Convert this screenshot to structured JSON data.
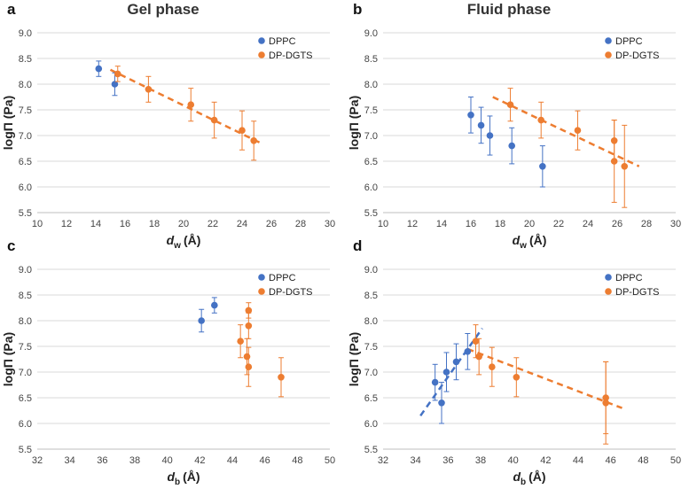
{
  "chart_data": [
    {
      "id": "a",
      "panel_label": "a",
      "title": "Gel phase",
      "type": "scatter",
      "xlabel_main": "d",
      "xlabel_sub": "w",
      "xlabel_unit": "(Å)",
      "ylabel": "logΠ (Pa)",
      "xlim": [
        10,
        30
      ],
      "xticks": [
        10,
        12,
        14,
        16,
        18,
        20,
        22,
        24,
        26,
        28,
        30
      ],
      "ylim": [
        5.5,
        9.0
      ],
      "yticks": [
        "5.5",
        "6.0",
        "6.5",
        "7.0",
        "7.5",
        "8.0",
        "8.5",
        "9.0"
      ],
      "legend": [
        "DPPC",
        "DP-DGTS"
      ],
      "series": [
        {
          "name": "DPPC",
          "color": "#4472c4",
          "points": [
            {
              "x": 14.2,
              "y": 8.3,
              "err": 0.15
            },
            {
              "x": 15.3,
              "y": 8.0,
              "err": 0.22
            }
          ]
        },
        {
          "name": "DP-DGTS",
          "color": "#ed7d31",
          "points": [
            {
              "x": 15.5,
              "y": 8.2,
              "err": 0.15
            },
            {
              "x": 17.6,
              "y": 7.9,
              "err": 0.25
            },
            {
              "x": 20.5,
              "y": 7.6,
              "err": 0.32
            },
            {
              "x": 22.1,
              "y": 7.3,
              "err": 0.35
            },
            {
              "x": 24.0,
              "y": 7.1,
              "err": 0.38
            },
            {
              "x": 24.8,
              "y": 6.9,
              "err": 0.38
            }
          ]
        }
      ],
      "trendlines": [
        {
          "color": "#ed7d31",
          "x": [
            15.0,
            25.3
          ],
          "y": [
            8.28,
            6.85
          ]
        }
      ]
    },
    {
      "id": "b",
      "panel_label": "b",
      "title": "Fluid phase",
      "type": "scatter",
      "xlabel_main": "d",
      "xlabel_sub": "w",
      "xlabel_unit": "(Å)",
      "ylabel": "logΠ (Pa)",
      "xlim": [
        10,
        30
      ],
      "xticks": [
        10,
        12,
        14,
        16,
        18,
        20,
        22,
        24,
        26,
        28,
        30
      ],
      "ylim": [
        5.5,
        9.0
      ],
      "yticks": [
        "5.5",
        "6.0",
        "6.5",
        "7.0",
        "7.5",
        "8.0",
        "8.5",
        "9.0"
      ],
      "legend": [
        "DPPC",
        "DP-DGTS"
      ],
      "series": [
        {
          "name": "DPPC",
          "color": "#4472c4",
          "points": [
            {
              "x": 16.0,
              "y": 7.4,
              "err": 0.35
            },
            {
              "x": 16.7,
              "y": 7.2,
              "err": 0.35
            },
            {
              "x": 17.3,
              "y": 7.0,
              "err": 0.38
            },
            {
              "x": 18.8,
              "y": 6.8,
              "err": 0.35
            },
            {
              "x": 20.9,
              "y": 6.4,
              "err": 0.4
            }
          ]
        },
        {
          "name": "DP-DGTS",
          "color": "#ed7d31",
          "points": [
            {
              "x": 18.7,
              "y": 7.6,
              "err": 0.32
            },
            {
              "x": 20.8,
              "y": 7.3,
              "err": 0.35
            },
            {
              "x": 23.3,
              "y": 7.1,
              "err": 0.38
            },
            {
              "x": 25.8,
              "y": 6.9,
              "err": 0.4
            },
            {
              "x": 25.8,
              "y": 6.5,
              "err": 0.8
            },
            {
              "x": 26.5,
              "y": 6.4,
              "err": 0.8
            }
          ]
        }
      ],
      "trendlines": [
        {
          "color": "#ed7d31",
          "x": [
            17.5,
            27.5
          ],
          "y": [
            7.75,
            6.4
          ]
        }
      ]
    },
    {
      "id": "c",
      "panel_label": "c",
      "title": "",
      "type": "scatter",
      "xlabel_main": "d",
      "xlabel_sub": "b",
      "xlabel_unit": "(Å)",
      "ylabel": "logΠ (Pa)",
      "xlim": [
        32,
        50
      ],
      "xticks": [
        32,
        34,
        36,
        38,
        40,
        42,
        44,
        46,
        48,
        50
      ],
      "ylim": [
        5.5,
        9.0
      ],
      "yticks": [
        "5.5",
        "6.0",
        "6.5",
        "7.0",
        "7.5",
        "8.0",
        "8.5",
        "9.0"
      ],
      "legend": [
        "DPPC",
        "DP-DGTS"
      ],
      "series": [
        {
          "name": "DPPC",
          "color": "#4472c4",
          "points": [
            {
              "x": 42.1,
              "y": 8.0,
              "err": 0.22
            },
            {
              "x": 42.9,
              "y": 8.3,
              "err": 0.15
            }
          ]
        },
        {
          "name": "DP-DGTS",
          "color": "#ed7d31",
          "points": [
            {
              "x": 44.5,
              "y": 7.6,
              "err": 0.32
            },
            {
              "x": 44.9,
              "y": 7.3,
              "err": 0.35
            },
            {
              "x": 45.0,
              "y": 8.2,
              "err": 0.15
            },
            {
              "x": 45.0,
              "y": 7.9,
              "err": 0.25
            },
            {
              "x": 45.0,
              "y": 7.1,
              "err": 0.38
            },
            {
              "x": 47.0,
              "y": 6.9,
              "err": 0.38
            }
          ]
        }
      ],
      "trendlines": []
    },
    {
      "id": "d",
      "panel_label": "d",
      "title": "",
      "type": "scatter",
      "xlabel_main": "d",
      "xlabel_sub": "b",
      "xlabel_unit": "(Å)",
      "ylabel": "logΠ (Pa)",
      "xlim": [
        32,
        50
      ],
      "xticks": [
        32,
        34,
        36,
        38,
        40,
        42,
        44,
        46,
        48,
        50
      ],
      "ylim": [
        5.5,
        9.0
      ],
      "yticks": [
        "5.5",
        "6.0",
        "6.5",
        "7.0",
        "7.5",
        "8.0",
        "8.5",
        "9.0"
      ],
      "legend": [
        "DPPC",
        "DP-DGTS"
      ],
      "series": [
        {
          "name": "DPPC",
          "color": "#4472c4",
          "points": [
            {
              "x": 35.2,
              "y": 6.8,
              "err": 0.35
            },
            {
              "x": 35.6,
              "y": 6.4,
              "err": 0.4
            },
            {
              "x": 35.9,
              "y": 7.0,
              "err": 0.38
            },
            {
              "x": 36.5,
              "y": 7.2,
              "err": 0.35
            },
            {
              "x": 37.2,
              "y": 7.4,
              "err": 0.35
            }
          ]
        },
        {
          "name": "DP-DGTS",
          "color": "#ed7d31",
          "points": [
            {
              "x": 37.7,
              "y": 7.6,
              "err": 0.32
            },
            {
              "x": 37.9,
              "y": 7.3,
              "err": 0.35
            },
            {
              "x": 38.7,
              "y": 7.1,
              "err": 0.38
            },
            {
              "x": 40.2,
              "y": 6.9,
              "err": 0.38
            },
            {
              "x": 45.7,
              "y": 6.5,
              "err": 0.7
            },
            {
              "x": 45.7,
              "y": 6.4,
              "err": 0.8
            }
          ]
        }
      ],
      "trendlines": [
        {
          "color": "#4472c4",
          "x": [
            34.3,
            38.1
          ],
          "y": [
            6.15,
            7.85
          ]
        },
        {
          "color": "#ed7d31",
          "x": [
            37.2,
            46.7
          ],
          "y": [
            7.45,
            6.3
          ]
        }
      ]
    }
  ]
}
